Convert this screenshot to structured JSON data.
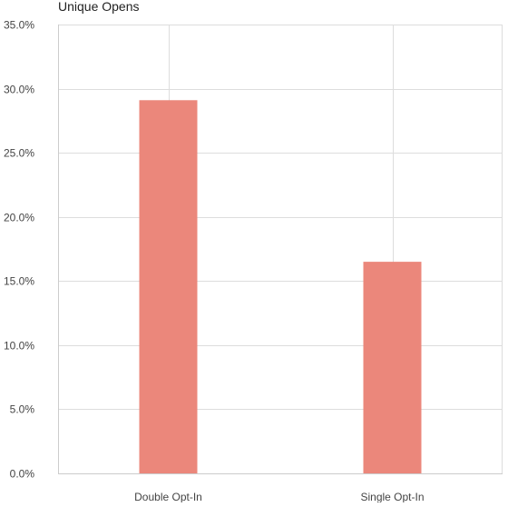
{
  "chart_data": {
    "type": "bar",
    "title": "Unique Opens",
    "categories": [
      "Double Opt-In",
      "Single Opt-In"
    ],
    "values": [
      29.1,
      16.5
    ],
    "value_format": "percent",
    "ylim": [
      0,
      35
    ],
    "yticks": [
      0,
      5,
      10,
      15,
      20,
      25,
      30,
      35
    ],
    "ytick_labels": [
      "0.0%",
      "5.0%",
      "10.0%",
      "15.0%",
      "20.0%",
      "25.0%",
      "30.0%",
      "35.0%"
    ],
    "xlabel": "",
    "ylabel": "",
    "grid": true,
    "colors": {
      "bar": "#eb877b",
      "grid": "#dddddd",
      "axis": "#cccccc"
    }
  }
}
